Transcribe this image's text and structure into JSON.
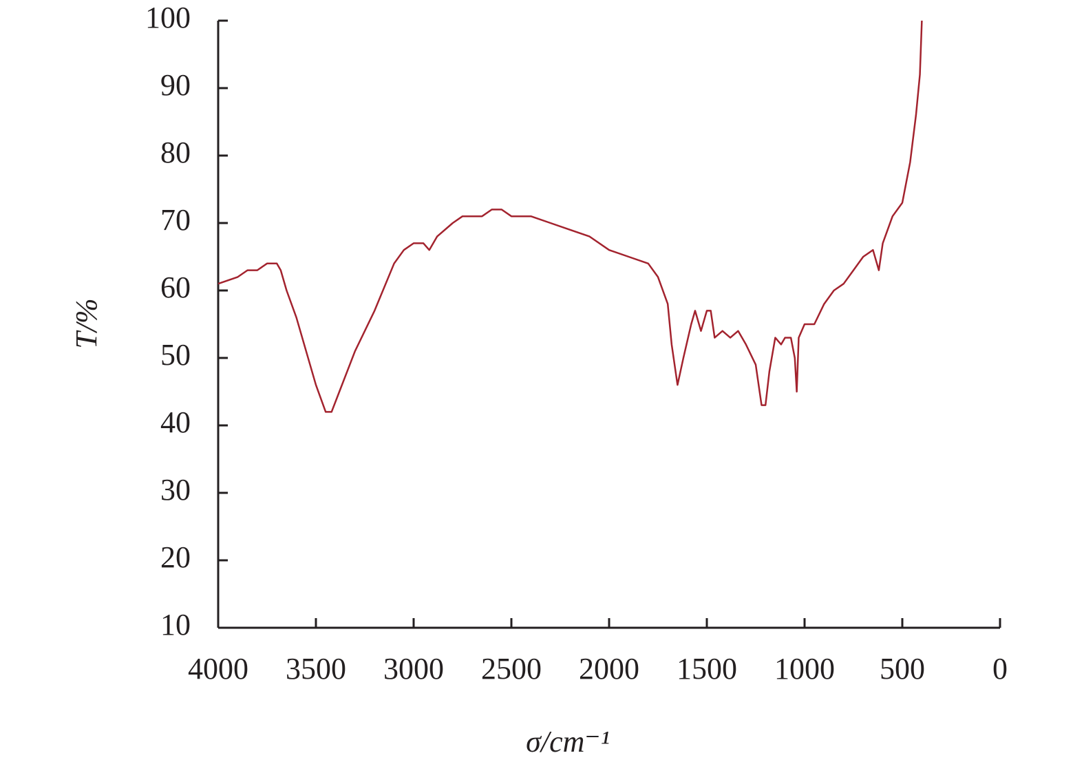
{
  "chart_data": {
    "type": "line",
    "x_label": "σ/cm⁻¹",
    "y_label": "T/%",
    "xlim": [
      4000,
      0
    ],
    "xticks": [
      4000,
      3500,
      3000,
      2500,
      2000,
      1500,
      1000,
      500,
      0
    ],
    "ylim": [
      10,
      100
    ],
    "yticks": [
      10,
      20,
      30,
      40,
      50,
      60,
      70,
      80,
      90,
      100
    ],
    "grid": false,
    "series": [
      {
        "color": "#a3232e",
        "x": [
          4000,
          3900,
          3850,
          3800,
          3750,
          3700,
          3680,
          3650,
          3600,
          3550,
          3500,
          3450,
          3420,
          3380,
          3300,
          3200,
          3100,
          3050,
          3000,
          2950,
          2920,
          2880,
          2800,
          2750,
          2700,
          2650,
          2600,
          2550,
          2500,
          2400,
          2300,
          2200,
          2100,
          2000,
          1900,
          1800,
          1750,
          1700,
          1680,
          1650,
          1620,
          1580,
          1560,
          1530,
          1500,
          1480,
          1460,
          1420,
          1380,
          1340,
          1300,
          1250,
          1220,
          1200,
          1180,
          1150,
          1120,
          1100,
          1070,
          1050,
          1040,
          1030,
          1000,
          950,
          900,
          850,
          800,
          750,
          700,
          650,
          620,
          600,
          550,
          500,
          460,
          430,
          410,
          400
        ],
        "values": [
          61,
          62,
          63,
          63,
          64,
          64,
          63,
          60,
          56,
          51,
          46,
          42,
          42,
          45,
          51,
          57,
          64,
          66,
          67,
          67,
          66,
          68,
          70,
          71,
          71,
          71,
          72,
          72,
          71,
          71,
          70,
          69,
          68,
          66,
          65,
          64,
          62,
          58,
          52,
          46,
          50,
          55,
          57,
          54,
          57,
          57,
          53,
          54,
          53,
          54,
          52,
          49,
          43,
          43,
          48,
          53,
          52,
          53,
          53,
          50,
          45,
          53,
          55,
          55,
          58,
          60,
          61,
          63,
          65,
          66,
          63,
          67,
          71,
          73,
          79,
          86,
          92,
          100
        ]
      }
    ]
  }
}
